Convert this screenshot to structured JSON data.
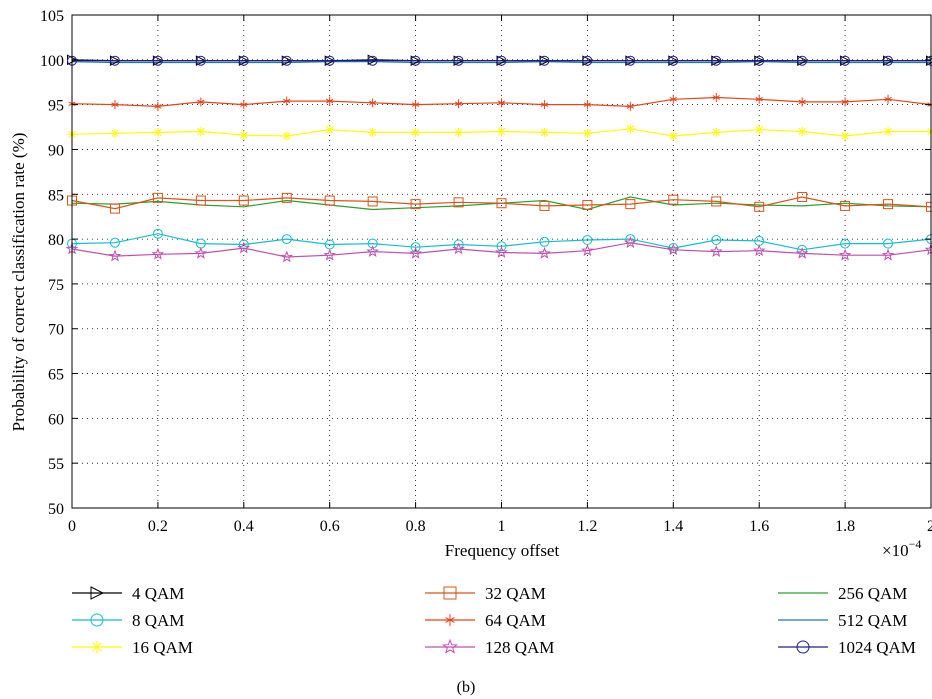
{
  "chart_data": {
    "type": "line",
    "xlabel": "Frequency offset",
    "x_multiplier": "×10",
    "x_multiplier_exp": "−4",
    "ylabel": "Probability of correct classification rate (%)",
    "caption": "(b)",
    "xlim": [
      0,
      2
    ],
    "ylim": [
      50,
      105
    ],
    "xticks": [
      0,
      0.2,
      0.4,
      0.6,
      0.8,
      1,
      1.2,
      1.4,
      1.6,
      1.8,
      2
    ],
    "xtick_labels": [
      "0",
      "0.2",
      "0.4",
      "0.6",
      "0.8",
      "1",
      "1.2",
      "1.4",
      "1.6",
      "1.8",
      "2"
    ],
    "yticks": [
      50,
      55,
      60,
      65,
      70,
      75,
      80,
      85,
      90,
      95,
      100,
      105
    ],
    "grid": "dotted",
    "legend_position": "below",
    "x": [
      0,
      0.1,
      0.2,
      0.3,
      0.4,
      0.5,
      0.6,
      0.7,
      0.8,
      0.9,
      1.0,
      1.1,
      1.2,
      1.3,
      1.4,
      1.5,
      1.6,
      1.7,
      1.8,
      1.9,
      2.0
    ],
    "series": [
      {
        "name": "4 QAM",
        "color": "#000000",
        "marker": "triangle-right",
        "values": [
          100,
          99.9,
          99.9,
          99.9,
          99.9,
          99.9,
          99.9,
          100,
          99.9,
          99.9,
          99.9,
          99.9,
          99.9,
          99.9,
          99.9,
          99.9,
          99.9,
          99.9,
          99.9,
          99.9,
          99.9
        ]
      },
      {
        "name": "8 QAM",
        "color": "#17becf",
        "marker": "circle",
        "values": [
          79.5,
          79.6,
          80.6,
          79.5,
          79.4,
          80.0,
          79.4,
          79.5,
          79.1,
          79.4,
          79.2,
          79.7,
          79.9,
          80.0,
          79.0,
          79.9,
          79.8,
          78.8,
          79.5,
          79.5,
          80.0
        ]
      },
      {
        "name": "16 QAM",
        "color": "#ffff00",
        "marker": "asterisk",
        "values": [
          91.7,
          91.8,
          91.9,
          92.0,
          91.6,
          91.5,
          92.2,
          91.9,
          91.9,
          91.9,
          92.0,
          91.9,
          91.8,
          92.3,
          91.5,
          91.9,
          92.2,
          92.0,
          91.5,
          92.0,
          92.0
        ]
      },
      {
        "name": "32 QAM",
        "color": "#d9541a",
        "marker": "square",
        "values": [
          84.3,
          83.4,
          84.6,
          84.3,
          84.3,
          84.6,
          84.3,
          84.2,
          83.9,
          84.1,
          84.0,
          83.7,
          83.8,
          83.9,
          84.4,
          84.2,
          83.6,
          84.7,
          83.7,
          83.9,
          83.6
        ]
      },
      {
        "name": "64 QAM",
        "color": "#e8441a",
        "marker": "star",
        "values": [
          95.1,
          95.0,
          94.8,
          95.3,
          95.0,
          95.4,
          95.4,
          95.2,
          95.0,
          95.1,
          95.2,
          95.0,
          95.0,
          94.8,
          95.6,
          95.8,
          95.6,
          95.3,
          95.3,
          95.6,
          95.0
        ]
      },
      {
        "name": "128 QAM",
        "color": "#c24fb0",
        "marker": "pentagram",
        "values": [
          78.9,
          78.1,
          78.3,
          78.4,
          79.0,
          78.0,
          78.2,
          78.6,
          78.4,
          78.9,
          78.5,
          78.4,
          78.7,
          79.6,
          78.8,
          78.6,
          78.7,
          78.4,
          78.2,
          78.2,
          78.8
        ]
      },
      {
        "name": "256 QAM",
        "color": "#2ca02c",
        "marker": "none",
        "values": [
          84.0,
          83.9,
          84.2,
          83.8,
          83.6,
          84.3,
          83.8,
          83.3,
          83.5,
          83.7,
          84.0,
          84.3,
          83.3,
          84.7,
          83.8,
          84.0,
          83.8,
          83.7,
          84.0,
          83.7,
          83.6
        ]
      },
      {
        "name": "512 QAM",
        "color": "#1f77b4",
        "marker": "none",
        "values": [
          99.8,
          99.7,
          99.7,
          99.7,
          99.7,
          99.7,
          99.8,
          99.8,
          99.7,
          99.7,
          99.7,
          99.8,
          99.7,
          99.7,
          99.7,
          99.7,
          99.8,
          99.7,
          99.7,
          99.7,
          99.7
        ]
      },
      {
        "name": "1024 QAM",
        "color": "#1f1f8f",
        "marker": "circle",
        "values": [
          99.9,
          99.9,
          99.9,
          99.9,
          99.9,
          99.9,
          99.9,
          99.9,
          99.9,
          99.9,
          99.9,
          99.9,
          99.9,
          99.9,
          99.9,
          99.9,
          99.9,
          99.9,
          99.9,
          99.9,
          99.9
        ]
      }
    ]
  }
}
